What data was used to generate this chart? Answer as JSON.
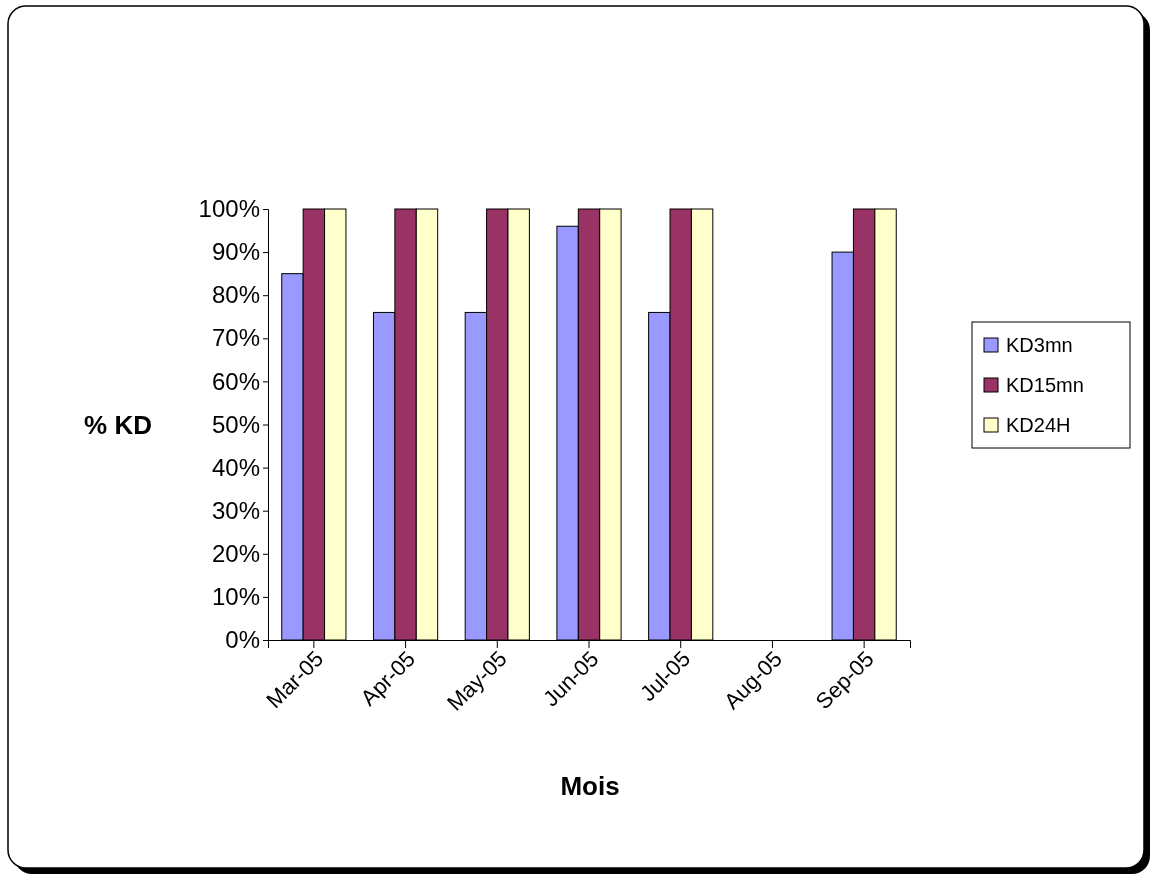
{
  "chart_data": {
    "type": "bar",
    "xlabel": "Mois",
    "ylabel": "% KD",
    "categories": [
      "Mar-05",
      "Apr-05",
      "May-05",
      "Jun-05",
      "Jul-05",
      "Aug-05",
      "Sep-05"
    ],
    "series": [
      {
        "name": "KD3mn",
        "color": "#9999ff",
        "values": [
          85,
          76,
          76,
          96,
          76,
          null,
          90
        ]
      },
      {
        "name": "KD15mn",
        "color": "#993366",
        "values": [
          100,
          100,
          100,
          100,
          100,
          null,
          100
        ]
      },
      {
        "name": "KD24H",
        "color": "#ffffcc",
        "values": [
          100,
          100,
          100,
          100,
          100,
          null,
          100
        ]
      }
    ],
    "ylim": [
      0,
      100
    ],
    "yticks": [
      {
        "value": 0,
        "label": "0%"
      },
      {
        "value": 10,
        "label": "10%"
      },
      {
        "value": 20,
        "label": "20%"
      },
      {
        "value": 30,
        "label": "30%"
      },
      {
        "value": 40,
        "label": "40%"
      },
      {
        "value": 50,
        "label": "50%"
      },
      {
        "value": 60,
        "label": "60%"
      },
      {
        "value": 70,
        "label": "70%"
      },
      {
        "value": 80,
        "label": "80%"
      },
      {
        "value": 90,
        "label": "90%"
      },
      {
        "value": 100,
        "label": "100%"
      }
    ],
    "grid": false,
    "legend": "right"
  }
}
